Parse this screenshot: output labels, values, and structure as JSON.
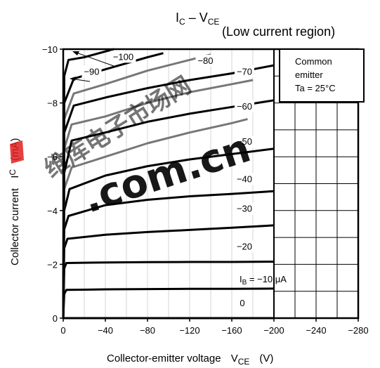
{
  "chart_data": {
    "type": "line",
    "title": "I",
    "title_sub1": "C",
    "title_mid": " – V",
    "title_sub2": "CE",
    "subtitle": "(Low current region)",
    "xlabel": "Collector-emitter voltage",
    "xlabel_symbol": "V",
    "xlabel_symbol_sub": "CE",
    "xlabel_unit": "(V)",
    "ylabel": "Collector current",
    "ylabel_symbol": "I",
    "ylabel_symbol_sub": "C",
    "ylabel_unit": "(mA)",
    "x_ticks": [
      "0",
      "−40",
      "−80",
      "−120",
      "−160",
      "−200",
      "−240",
      "−280"
    ],
    "x_tick_values": [
      0,
      -40,
      -80,
      -120,
      -160,
      -200,
      -240,
      -280
    ],
    "y_ticks": [
      "0",
      "−2",
      "−4",
      "−6",
      "−8",
      "−10"
    ],
    "y_tick_values": [
      0,
      -2,
      -4,
      -6,
      -8,
      -10
    ],
    "xlim": [
      0,
      -280
    ],
    "ylim": [
      0,
      -10
    ],
    "grid": true,
    "legend_box": {
      "line1": "Common",
      "line2": "emitter",
      "line3": "Ta = 25°C"
    },
    "ib_label": {
      "prefix": "I",
      "sub": "B",
      "value": " = −10 μA"
    },
    "series": [
      {
        "label": "0",
        "color": "#000000",
        "points": [
          [
            0,
            0
          ],
          [
            -40,
            0
          ],
          [
            -80,
            0
          ],
          [
            -120,
            0
          ],
          [
            -160,
            0
          ],
          [
            -200,
            0
          ]
        ]
      },
      {
        "label": "",
        "color": "#000000",
        "points": [
          [
            0,
            0
          ],
          [
            -1,
            -0.9
          ],
          [
            -3,
            -1.05
          ],
          [
            -40,
            -1.07
          ],
          [
            -80,
            -1.08
          ],
          [
            -120,
            -1.09
          ],
          [
            -160,
            -1.09
          ],
          [
            -200,
            -1.1
          ]
        ]
      },
      {
        "label": "−20",
        "color": "#000000",
        "points": [
          [
            0,
            0
          ],
          [
            -1,
            -1.85
          ],
          [
            -3,
            -2.05
          ],
          [
            -40,
            -2.07
          ],
          [
            -80,
            -2.08
          ],
          [
            -120,
            -2.09
          ],
          [
            -160,
            -2.09
          ],
          [
            -200,
            -2.1
          ]
        ]
      },
      {
        "label": "−30",
        "color": "#000000",
        "points": [
          [
            0,
            0
          ],
          [
            -1,
            -2.6
          ],
          [
            -4,
            -2.95
          ],
          [
            -40,
            -3.1
          ],
          [
            -80,
            -3.2
          ],
          [
            -120,
            -3.28
          ],
          [
            -160,
            -3.36
          ],
          [
            -200,
            -3.45
          ]
        ]
      },
      {
        "label": "−40",
        "color": "#000000",
        "points": [
          [
            0,
            0
          ],
          [
            -1,
            -3.3
          ],
          [
            -5,
            -3.8
          ],
          [
            -40,
            -4.2
          ],
          [
            -80,
            -4.4
          ],
          [
            -120,
            -4.53
          ],
          [
            -160,
            -4.62
          ],
          [
            -200,
            -4.72
          ]
        ]
      },
      {
        "label": "−50",
        "color": "#000000",
        "points": [
          [
            0,
            0
          ],
          [
            -1,
            -4.0
          ],
          [
            -6,
            -4.8
          ],
          [
            -40,
            -5.3
          ],
          [
            -80,
            -5.65
          ],
          [
            -120,
            -5.9
          ],
          [
            -160,
            -6.1
          ],
          [
            -200,
            -6.3
          ]
        ]
      },
      {
        "label": "",
        "color": "#777777",
        "points": [
          [
            0,
            0
          ],
          [
            -1,
            -4.8
          ],
          [
            -8,
            -5.6
          ],
          [
            -40,
            -6.0
          ],
          [
            -80,
            -6.5
          ],
          [
            -120,
            -6.9
          ],
          [
            -160,
            -7.25
          ],
          [
            -175,
            -7.4
          ]
        ]
      },
      {
        "label": "−60",
        "color": "#000000",
        "points": [
          [
            0,
            0
          ],
          [
            -1,
            -5.4
          ],
          [
            -8,
            -6.6
          ],
          [
            -40,
            -6.9
          ],
          [
            -80,
            -7.3
          ],
          [
            -120,
            -7.6
          ],
          [
            -160,
            -7.85
          ],
          [
            -200,
            -8.1
          ]
        ]
      },
      {
        "label": "",
        "color": "#777777",
        "points": [
          [
            0,
            0
          ],
          [
            -1,
            -6.3
          ],
          [
            -8,
            -7.2
          ],
          [
            -40,
            -7.5
          ],
          [
            -80,
            -8.0
          ],
          [
            -120,
            -8.4
          ],
          [
            -160,
            -8.7
          ],
          [
            -180,
            -8.85
          ]
        ]
      },
      {
        "label": "−70",
        "color": "#000000",
        "points": [
          [
            0,
            0
          ],
          [
            -1,
            -6.9
          ],
          [
            -10,
            -7.9
          ],
          [
            -40,
            -8.2
          ],
          [
            -80,
            -8.55
          ],
          [
            -120,
            -8.85
          ],
          [
            -160,
            -9.1
          ],
          [
            -200,
            -9.4
          ]
        ]
      },
      {
        "label": "−80",
        "color": "#777777",
        "points": [
          [
            0,
            0
          ],
          [
            -1,
            -7.4
          ],
          [
            -10,
            -8.35
          ],
          [
            -40,
            -8.7
          ],
          [
            -80,
            -9.2
          ],
          [
            -120,
            -9.6
          ],
          [
            -140,
            -9.8
          ]
        ]
      },
      {
        "label": "−90",
        "color": "#000000",
        "points": [
          [
            0,
            0
          ],
          [
            -1,
            -8.0
          ],
          [
            -10,
            -8.9
          ],
          [
            -40,
            -9.25
          ],
          [
            -80,
            -9.7
          ],
          [
            -95,
            -9.85
          ]
        ]
      },
      {
        "label": "−100",
        "color": "#000000",
        "points": [
          [
            0,
            0
          ],
          [
            -1,
            -9.0
          ],
          [
            -5,
            -9.6
          ],
          [
            -20,
            -9.7
          ],
          [
            -48,
            -10.0
          ]
        ]
      }
    ],
    "watermark": ".com.cn",
    "watermark_cjk": "维库电子市场网"
  }
}
